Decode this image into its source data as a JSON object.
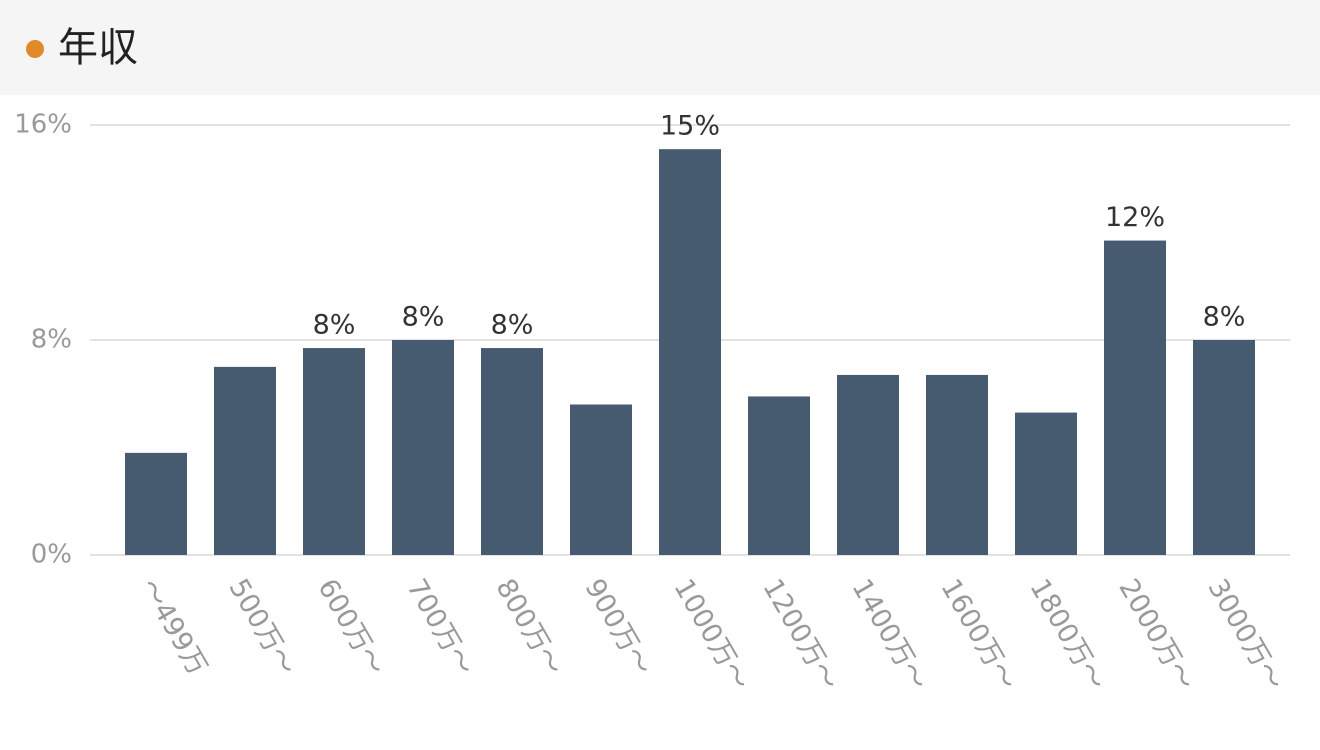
{
  "chart_data": {
    "type": "bar",
    "title": "年収",
    "categories": [
      "～499万",
      "500万～",
      "600万～",
      "700万～",
      "800万～",
      "900万～",
      "1000万～",
      "1200万～",
      "1400万～",
      "1600万～",
      "1800万～",
      "2000万～",
      "3000万～"
    ],
    "values": [
      3.8,
      7.0,
      7.7,
      8.0,
      7.7,
      5.6,
      15.1,
      5.9,
      6.7,
      6.7,
      5.3,
      11.7,
      8.0
    ],
    "value_labels": [
      null,
      null,
      "8%",
      "8%",
      "8%",
      null,
      "15%",
      null,
      null,
      null,
      null,
      "12%",
      "8%"
    ],
    "color": "#465a70",
    "ylim": [
      0,
      16
    ],
    "yticks": [
      {
        "value": 0,
        "label": "0%"
      },
      {
        "value": 8,
        "label": "8%"
      },
      {
        "value": 16,
        "label": "16%"
      }
    ],
    "grid": true
  }
}
